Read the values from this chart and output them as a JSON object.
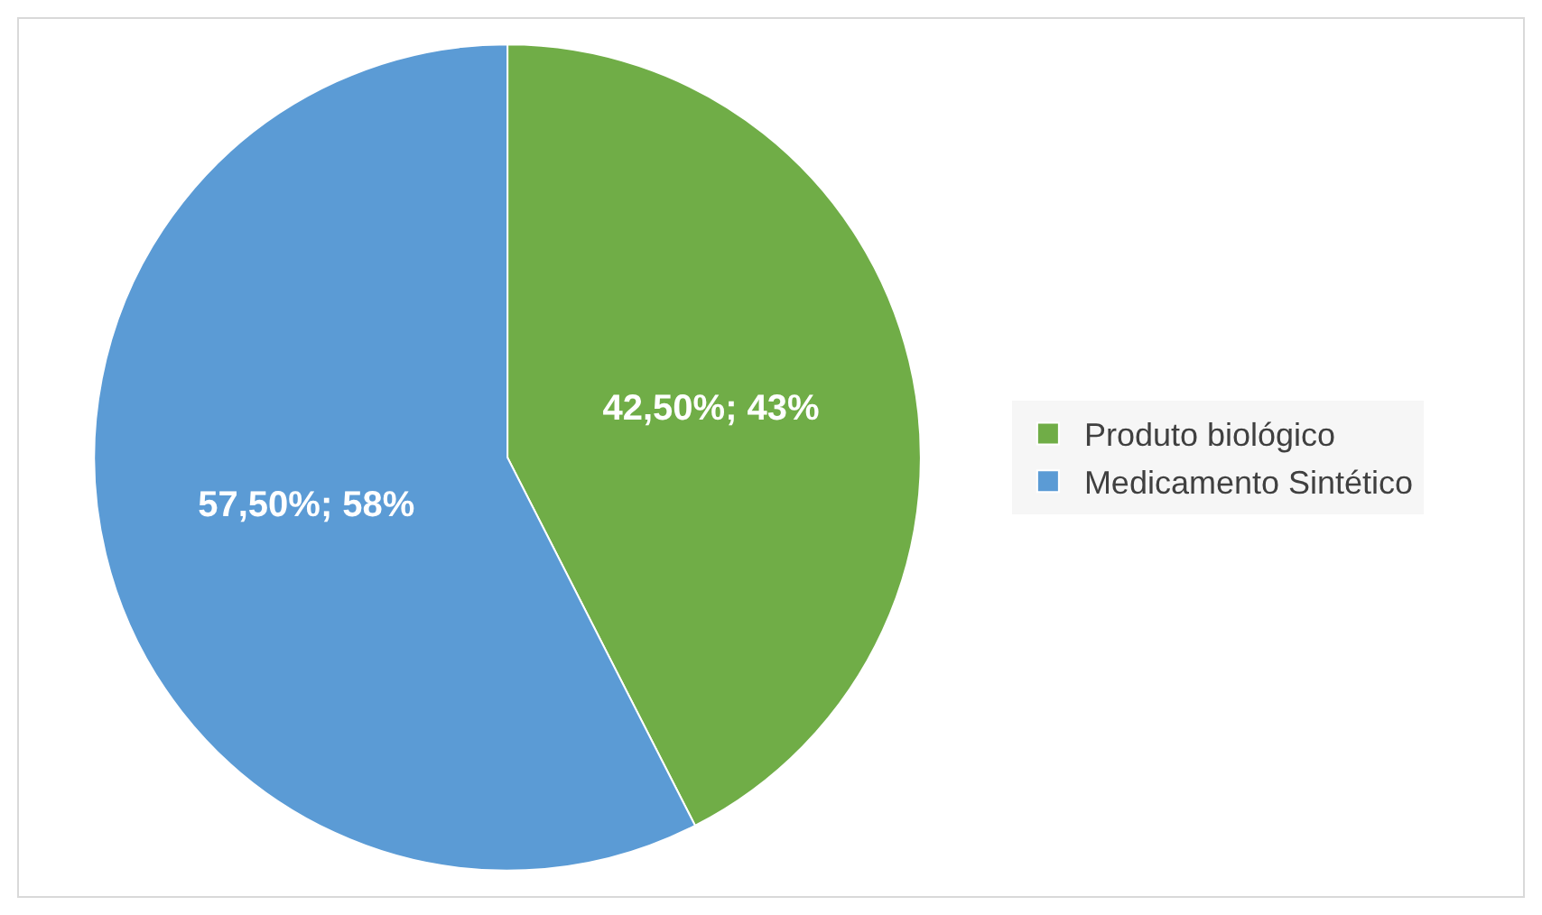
{
  "chart_data": {
    "type": "pie",
    "categories": [
      "Produto biológico",
      "Medicamento Sintético"
    ],
    "values": [
      42.5,
      57.5
    ],
    "colors": [
      "#70ad47",
      "#5b9bd5"
    ],
    "value_labels": [
      "42,50%; 43%",
      "57,50%; 58%"
    ],
    "legend": "right"
  }
}
